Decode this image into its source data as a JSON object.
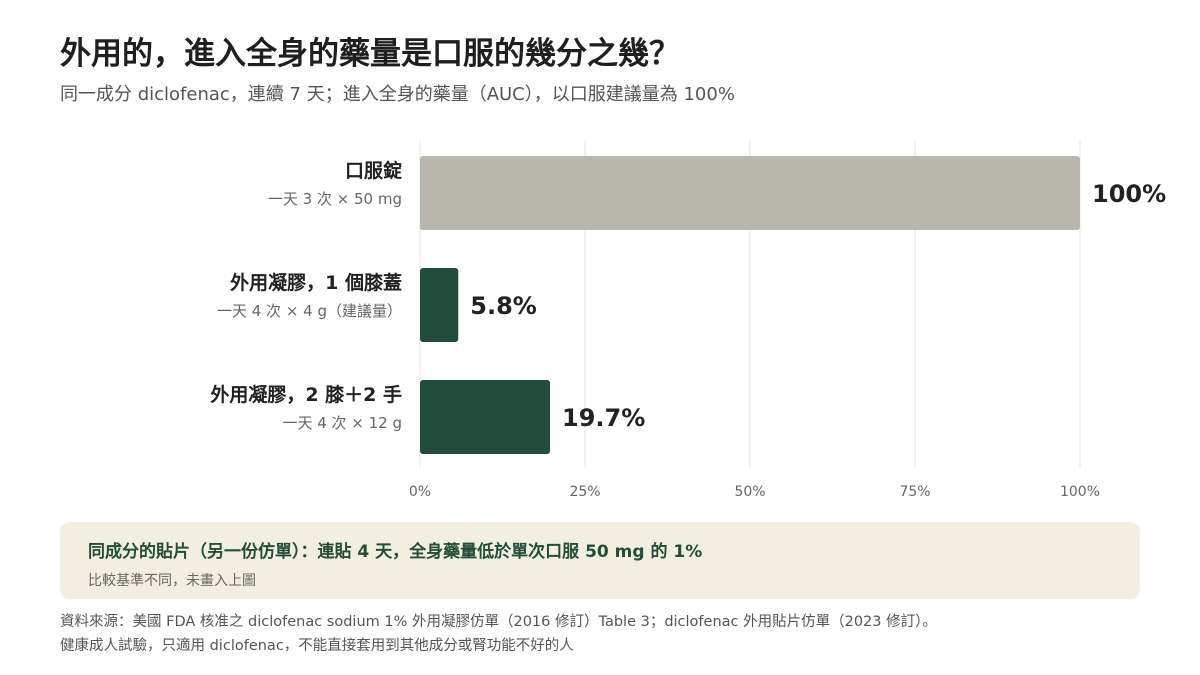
{
  "header": {
    "title": "外用的，進入全身的藥量是口服的幾分之幾？",
    "subtitle": "同一成分 diclofenac，連續 7 天；進入全身的藥量（AUC），以口服建議量為 100%"
  },
  "chart_data": {
    "type": "bar",
    "orientation": "horizontal",
    "categories": [
      "口服錠",
      "外用凝膠，1 個膝蓋",
      "外用凝膠，2 膝＋2 手"
    ],
    "category_sublabels": [
      "一天 3 次 × 50 mg",
      "一天 4 次 × 4 g（建議量）",
      "一天 4 次 × 12 g"
    ],
    "values": [
      100,
      5.8,
      19.7
    ],
    "data_labels": [
      "100%",
      "5.8%",
      "19.7%"
    ],
    "bar_colors": [
      "#b9b6ae",
      "#234d3b",
      "#234d3b"
    ],
    "xlim": [
      0,
      100
    ],
    "xticks": [
      0,
      25,
      50,
      75,
      100
    ],
    "xtick_labels": [
      "0%",
      "25%",
      "50%",
      "75%",
      "100%"
    ],
    "grid": true,
    "xlabel": "",
    "ylabel": ""
  },
  "note": {
    "title": "同成分的貼片（另一份仿單）：連貼 4 天，全身藥量低於單次口服 50 mg 的 1%",
    "subtitle": "比較基準不同，未畫入上圖"
  },
  "source": {
    "line1": "資料來源：美國 FDA 核准之 diclofenac sodium 1% 外用凝膠仿單（2016 修訂）Table 3；diclofenac 外用貼片仿單（2023 修訂）。",
    "line2": "健康成人試驗，只適用 diclofenac，不能直接套用到其他成分或腎功能不好的人"
  },
  "colors": {
    "accent": "#234d3b",
    "reference_bar": "#b9b6ae",
    "note_bg": "#f2eee0"
  }
}
